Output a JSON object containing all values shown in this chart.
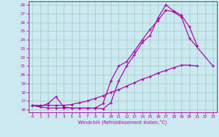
{
  "xlabel": "Windchill (Refroidissement éolien,°C)",
  "bg_color": "#cce8f0",
  "line_color": "#aa00aa",
  "grid_color": "#99ccbb",
  "xmin": 0,
  "xmax": 23,
  "ymin": 16,
  "ymax": 28,
  "line1_x": [
    0,
    1,
    2,
    3,
    4,
    5,
    6,
    7,
    8,
    9,
    10,
    11,
    12,
    13,
    14,
    15,
    16,
    17,
    18,
    19,
    20,
    21
  ],
  "line1_y": [
    16.5,
    16.3,
    16.2,
    16.2,
    16.2,
    16.2,
    16.2,
    16.2,
    16.2,
    16.1,
    16.8,
    19.3,
    21.0,
    22.3,
    23.7,
    24.5,
    26.5,
    28.0,
    27.3,
    26.8,
    25.5,
    23.3
  ],
  "line2_x": [
    0,
    1,
    2,
    3,
    4,
    5,
    6,
    7,
    8,
    9,
    10,
    11,
    12,
    13,
    14,
    15,
    16,
    17,
    18,
    19,
    20,
    23
  ],
  "line2_y": [
    16.5,
    16.4,
    16.7,
    17.5,
    16.3,
    16.2,
    16.2,
    16.2,
    16.2,
    16.7,
    19.3,
    21.0,
    21.5,
    22.7,
    24.0,
    25.2,
    26.2,
    27.4,
    27.2,
    26.6,
    24.2,
    21.0
  ],
  "line3_x": [
    0,
    1,
    2,
    3,
    4,
    5,
    6,
    7,
    8,
    9,
    10,
    11,
    12,
    13,
    14,
    15,
    16,
    17,
    18,
    19,
    20,
    21
  ],
  "line3_y": [
    16.5,
    16.5,
    16.5,
    16.5,
    16.5,
    16.6,
    16.8,
    17.0,
    17.3,
    17.6,
    18.0,
    18.3,
    18.7,
    19.1,
    19.5,
    19.8,
    20.2,
    20.5,
    20.8,
    21.1,
    21.1,
    21.0
  ]
}
